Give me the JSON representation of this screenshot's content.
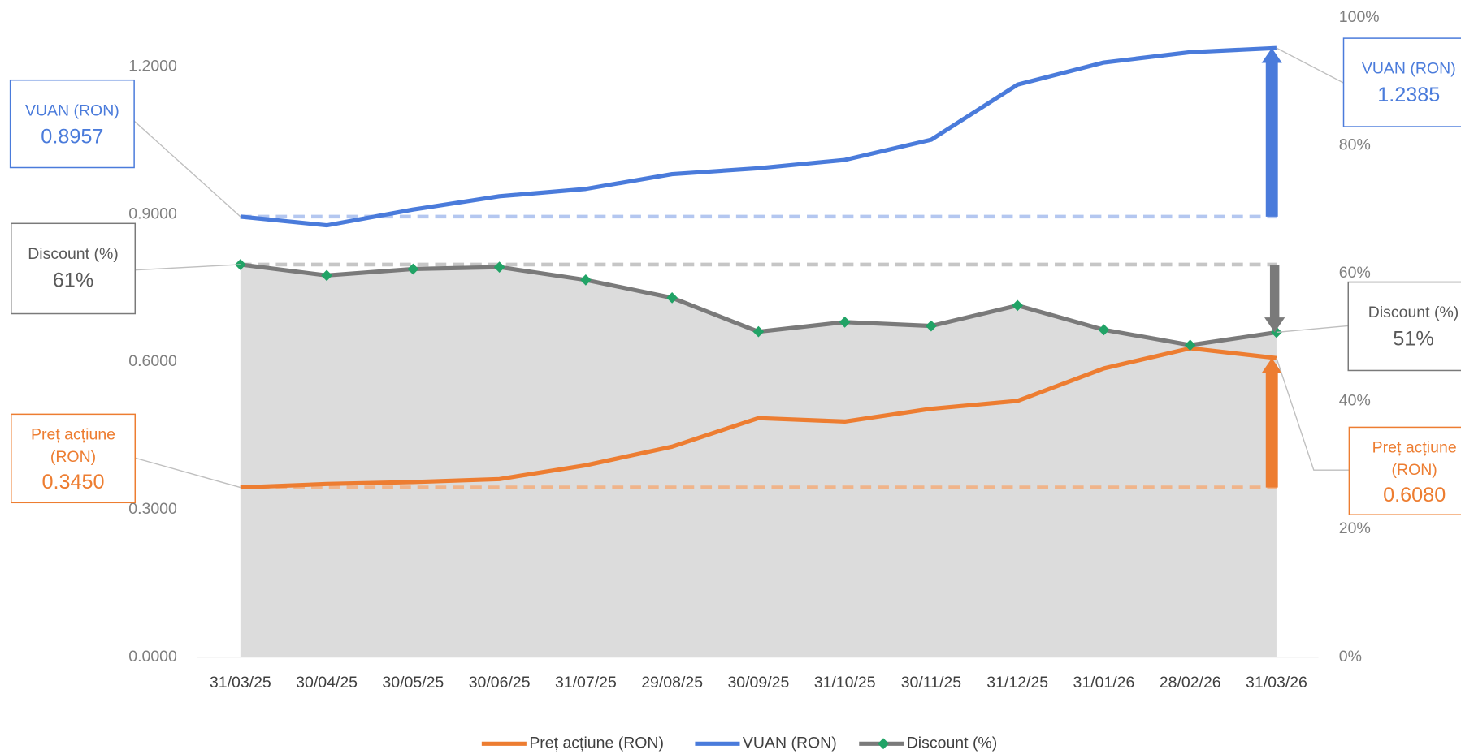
{
  "chart_data": {
    "type": "line",
    "categories": [
      "31/03/25",
      "30/04/25",
      "30/05/25",
      "30/06/25",
      "31/07/25",
      "29/08/25",
      "30/09/25",
      "31/10/25",
      "30/11/25",
      "31/12/25",
      "31/01/26",
      "28/02/26",
      "31/03/26"
    ],
    "series": [
      {
        "name": "Preț acțiune (RON)",
        "color": "#ed7d31",
        "dash_color": "#f0b48a",
        "axis": "y",
        "values": [
          0.345,
          0.352,
          0.356,
          0.362,
          0.39,
          0.428,
          0.486,
          0.479,
          0.505,
          0.521,
          0.587,
          0.628,
          0.608
        ],
        "first_label": "0.3450",
        "last_label": "0.6080"
      },
      {
        "name": "VUAN (RON)",
        "color": "#4a7bdb",
        "dash_color": "#b4c7f0",
        "axis": "y",
        "values": [
          0.8957,
          0.878,
          0.91,
          0.937,
          0.952,
          0.982,
          0.994,
          1.011,
          1.052,
          1.164,
          1.209,
          1.23,
          1.2385
        ],
        "first_label": "0.8957",
        "last_label": "1.2385"
      },
      {
        "name": "Discount (%)",
        "color": "#7a7a7a",
        "dash_color": "#c6c6c6",
        "marker_color": "#21a366",
        "area_color": "#dcdcdc",
        "axis": "y2",
        "values": [
          61.4,
          59.7,
          60.7,
          61.0,
          59.0,
          56.2,
          50.9,
          52.4,
          51.8,
          55.0,
          51.2,
          48.8,
          50.8
        ],
        "first_label": "61%",
        "last_label": "51%"
      }
    ],
    "ylim": [
      0,
      1.3
    ],
    "yticks": [
      {
        "value": 0,
        "label": "0.0000"
      },
      {
        "value": 0.3,
        "label": "0.3000"
      },
      {
        "value": 0.6,
        "label": "0.6000"
      },
      {
        "value": 0.9,
        "label": "0.9000"
      },
      {
        "value": 1.2,
        "label": "1.2000"
      }
    ],
    "y2lim": [
      0,
      100
    ],
    "y2ticks": [
      {
        "value": 0,
        "label": "0%"
      },
      {
        "value": 20,
        "label": "20%"
      },
      {
        "value": 40,
        "label": "40%"
      },
      {
        "value": 60,
        "label": "60%"
      },
      {
        "value": 80,
        "label": "80%"
      },
      {
        "value": 100,
        "label": "100%"
      }
    ],
    "grid": false,
    "legend": "bottom"
  }
}
